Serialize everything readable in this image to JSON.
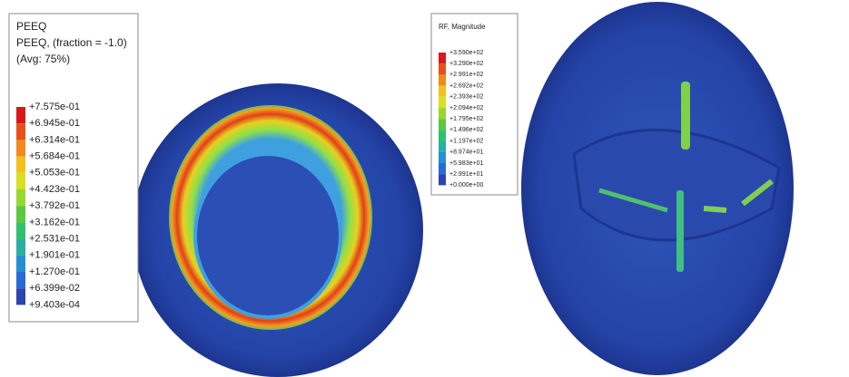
{
  "left_panel": {
    "legend": {
      "title_lines": [
        "PEEQ",
        "PEEQ, (fraction = -1.0)",
        "(Avg: 75%)"
      ],
      "labels": [
        "+7.575e-01",
        "+6.945e-01",
        "+6.314e-01",
        "+5.684e-01",
        "+5.053e-01",
        "+4.423e-01",
        "+3.792e-01",
        "+3.162e-01",
        "+2.531e-01",
        "+1.901e-01",
        "+1.270e-01",
        "+6.399e-02",
        "+9.403e-04"
      ]
    }
  },
  "right_panel": {
    "legend": {
      "title_lines": [
        "RF, Magnitude"
      ],
      "labels": [
        "+3.590e+02",
        "+3.290e+02",
        "+2.991e+02",
        "+2.692e+02",
        "+2.393e+02",
        "+2.094e+02",
        "+1.795e+02",
        "+1.496e+02",
        "+1.197e+02",
        "+8.974e+01",
        "+5.983e+01",
        "+2.991e+01",
        "+0.000e+00"
      ]
    }
  }
}
